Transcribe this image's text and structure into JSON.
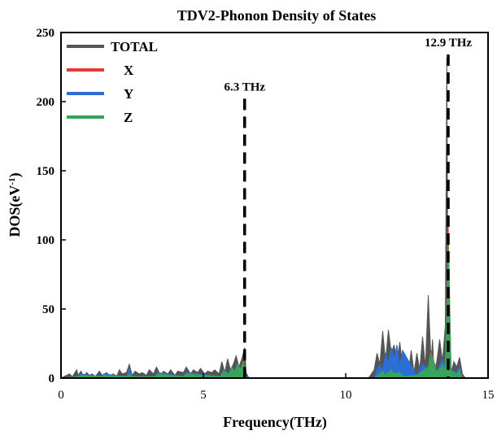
{
  "chart_data": {
    "type": "area",
    "title": "TDV2-Phonon Density of States",
    "xlabel": "Frequency(THz)",
    "ylabel": "DOS(eV",
    "ylabel_sup": "-1",
    "ylabel_close": ")",
    "xlim": [
      0,
      15
    ],
    "ylim": [
      0,
      250
    ],
    "xticks": [
      0,
      5,
      10,
      15
    ],
    "yticks": [
      0,
      50,
      100,
      150,
      200,
      250
    ],
    "grid": false,
    "legend_position": "top-left",
    "annotations": [
      {
        "x": 6.45,
        "label": "6.3 THz",
        "label_y": 208
      },
      {
        "x": 13.6,
        "label": "12.9 THz",
        "label_y": 240
      }
    ],
    "series": [
      {
        "name": "TOTAL",
        "color": "#555555",
        "x": [
          0,
          0.3,
          0.4,
          0.55,
          0.6,
          0.7,
          0.8,
          0.9,
          1.0,
          1.1,
          1.2,
          1.35,
          1.45,
          1.6,
          1.7,
          1.85,
          1.95,
          2.05,
          2.15,
          2.3,
          2.4,
          2.5,
          2.6,
          2.75,
          2.85,
          3.0,
          3.1,
          3.25,
          3.35,
          3.5,
          3.6,
          3.75,
          3.85,
          4.0,
          4.1,
          4.3,
          4.4,
          4.55,
          4.65,
          4.8,
          4.9,
          5.05,
          5.15,
          5.3,
          5.4,
          5.55,
          5.65,
          5.75,
          5.85,
          5.95,
          6.05,
          6.15,
          6.25,
          6.35,
          6.45,
          6.5,
          6.6,
          7.0,
          8.0,
          9.0,
          10.0,
          10.8,
          11.0,
          11.1,
          11.2,
          11.3,
          11.4,
          11.5,
          11.6,
          11.7,
          11.8,
          11.9,
          12.0,
          12.1,
          12.2,
          12.3,
          12.4,
          12.5,
          12.6,
          12.7,
          12.8,
          12.9,
          13.0,
          13.05,
          13.1,
          13.2,
          13.3,
          13.4,
          13.5,
          13.55,
          13.6,
          13.65,
          13.7,
          13.8,
          13.9,
          14.0,
          14.1,
          14.2
        ],
        "y": [
          0,
          3,
          1,
          6,
          2,
          5,
          1,
          4,
          2,
          3,
          1,
          5,
          2,
          4,
          2,
          3,
          1,
          6,
          3,
          4,
          10,
          2,
          5,
          3,
          4,
          2,
          6,
          3,
          8,
          2,
          5,
          3,
          6,
          2,
          5,
          4,
          8,
          3,
          6,
          4,
          7,
          3,
          5,
          4,
          6,
          3,
          12,
          4,
          14,
          6,
          10,
          16,
          8,
          14,
          22,
          4,
          0,
          0,
          0,
          0,
          0,
          0,
          6,
          18,
          10,
          34,
          12,
          35,
          18,
          24,
          10,
          26,
          8,
          4,
          2,
          20,
          4,
          18,
          6,
          30,
          8,
          60,
          10,
          28,
          4,
          12,
          28,
          12,
          38,
          232,
          20,
          6,
          4,
          12,
          8,
          15,
          3,
          0
        ]
      },
      {
        "name": "X",
        "color": "#e03a3a",
        "x": [
          0,
          0.6,
          0.7,
          1.4,
          1.5,
          2.3,
          2.4,
          2.5,
          3.3,
          3.4,
          4.3,
          4.4,
          5.6,
          5.7,
          6.0,
          6.1,
          6.2,
          6.3,
          6.4,
          6.5,
          6.6,
          11.0,
          11.2,
          11.3,
          11.4,
          11.6,
          11.7,
          11.9,
          12.0,
          12.5,
          12.7,
          12.9,
          13.0,
          13.2,
          13.4,
          13.5,
          13.6,
          13.7,
          13.9,
          14.0,
          14.1
        ],
        "y": [
          0,
          1,
          3,
          1,
          2,
          1,
          4,
          1,
          1,
          3,
          1,
          3,
          1,
          4,
          2,
          5,
          2,
          4,
          7,
          1,
          0,
          0,
          3,
          6,
          2,
          7,
          3,
          4,
          1,
          2,
          6,
          8,
          20,
          4,
          8,
          6,
          110,
          5,
          3,
          6,
          0
        ]
      },
      {
        "name": "Y",
        "color": "#2a6fd6",
        "x": [
          0,
          0.6,
          0.7,
          1.4,
          1.5,
          2.3,
          2.4,
          2.5,
          3.3,
          3.4,
          4.3,
          4.4,
          5.6,
          5.7,
          6.0,
          6.1,
          6.2,
          6.3,
          6.4,
          6.5,
          6.6,
          11.0,
          11.1,
          11.2,
          11.3,
          11.4,
          11.5,
          11.6,
          11.7,
          11.8,
          11.9,
          12.0,
          12.5,
          12.7,
          12.9,
          13.0,
          13.2,
          13.4,
          13.5,
          13.6,
          13.7,
          13.9,
          14.0,
          14.1
        ],
        "y": [
          0,
          1,
          3,
          1,
          3,
          1,
          7,
          1,
          1,
          4,
          1,
          4,
          1,
          6,
          2,
          6,
          2,
          5,
          9,
          1,
          0,
          0,
          6,
          10,
          5,
          18,
          10,
          22,
          14,
          24,
          8,
          20,
          2,
          10,
          6,
          18,
          4,
          14,
          8,
          90,
          6,
          4,
          8,
          0
        ]
      },
      {
        "name": "Z",
        "color": "#3aa35a",
        "x": [
          0,
          0.6,
          0.7,
          1.4,
          1.5,
          2.3,
          2.4,
          2.5,
          3.3,
          3.4,
          4.3,
          4.4,
          5.6,
          5.7,
          5.9,
          6.0,
          6.1,
          6.2,
          6.3,
          6.4,
          6.5,
          6.6,
          11.0,
          11.2,
          11.3,
          11.4,
          11.6,
          11.7,
          11.9,
          12.0,
          12.5,
          12.7,
          12.9,
          13.0,
          13.2,
          13.4,
          13.5,
          13.6,
          13.7,
          13.9,
          14.0,
          14.1
        ],
        "y": [
          0,
          1,
          2,
          1,
          2,
          1,
          3,
          1,
          1,
          3,
          1,
          3,
          1,
          5,
          3,
          8,
          4,
          10,
          6,
          12,
          1,
          0,
          0,
          3,
          5,
          2,
          6,
          3,
          4,
          1,
          2,
          5,
          8,
          18,
          4,
          10,
          6,
          98,
          5,
          3,
          6,
          0
        ]
      }
    ]
  }
}
